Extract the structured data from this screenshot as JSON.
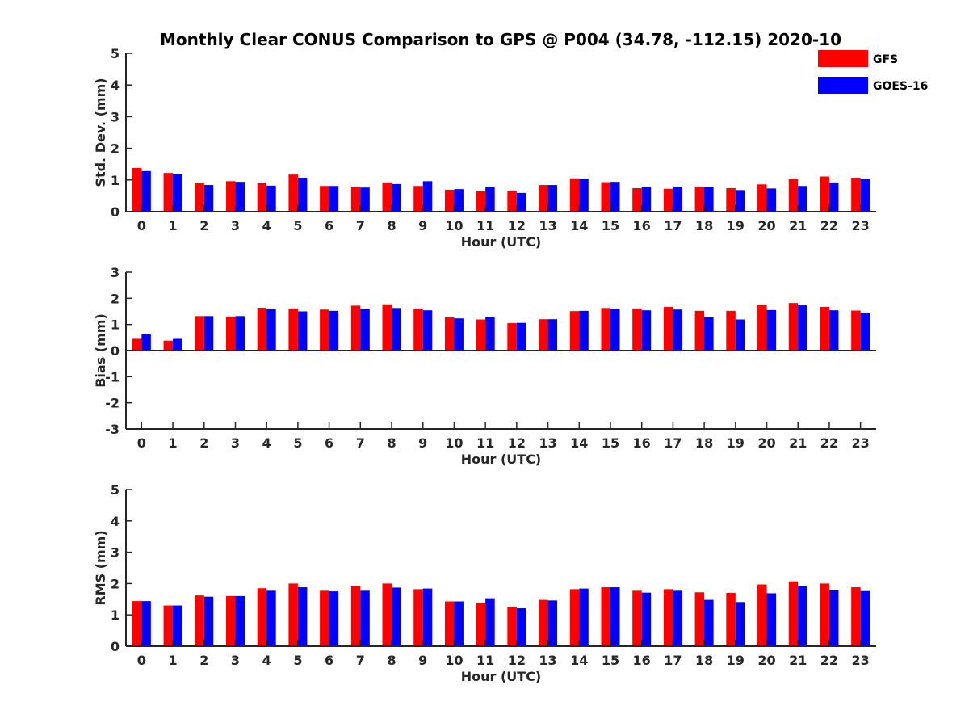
{
  "chart_data": [
    {
      "type": "bar",
      "title": "Monthly Clear CONUS Comparison to GPS @ P004 (34.78, -112.15) 2020-10",
      "xlabel": "Hour (UTC)",
      "ylabel": "Std. Dev. (mm)",
      "ylim": [
        0,
        5
      ],
      "yticks": [
        0,
        1,
        2,
        3,
        4,
        5
      ],
      "categories": [
        "0",
        "1",
        "2",
        "3",
        "4",
        "5",
        "6",
        "7",
        "8",
        "9",
        "10",
        "11",
        "12",
        "13",
        "14",
        "15",
        "16",
        "17",
        "18",
        "19",
        "20",
        "21",
        "22",
        "23"
      ],
      "series": [
        {
          "name": "GFS",
          "color": "#ff0000",
          "values": [
            1.38,
            1.22,
            0.9,
            0.96,
            0.9,
            1.17,
            0.81,
            0.79,
            0.92,
            0.81,
            0.69,
            0.64,
            0.66,
            0.84,
            1.05,
            0.93,
            0.74,
            0.72,
            0.79,
            0.74,
            0.86,
            1.02,
            1.11,
            1.07
          ]
        },
        {
          "name": "GOES-16",
          "color": "#0000ff",
          "values": [
            1.28,
            1.19,
            0.84,
            0.94,
            0.82,
            1.07,
            0.81,
            0.76,
            0.87,
            0.96,
            0.71,
            0.78,
            0.59,
            0.84,
            1.04,
            0.94,
            0.78,
            0.78,
            0.79,
            0.68,
            0.73,
            0.81,
            0.92,
            1.03
          ]
        }
      ],
      "legend": "top-right",
      "grid": false
    },
    {
      "type": "bar",
      "xlabel": "Hour (UTC)",
      "ylabel": "Bias (mm)",
      "ylim": [
        -3,
        3
      ],
      "yticks": [
        -3,
        -2,
        -1,
        0,
        1,
        2,
        3
      ],
      "categories": [
        "0",
        "1",
        "2",
        "3",
        "4",
        "5",
        "6",
        "7",
        "8",
        "9",
        "10",
        "11",
        "12",
        "13",
        "14",
        "15",
        "16",
        "17",
        "18",
        "19",
        "20",
        "21",
        "22",
        "23"
      ],
      "series": [
        {
          "name": "GFS",
          "color": "#ff0000",
          "values": [
            0.45,
            0.38,
            1.32,
            1.3,
            1.64,
            1.61,
            1.57,
            1.72,
            1.77,
            1.6,
            1.27,
            1.19,
            1.05,
            1.2,
            1.51,
            1.63,
            1.61,
            1.67,
            1.52,
            1.52,
            1.76,
            1.82,
            1.67,
            1.53
          ]
        },
        {
          "name": "GOES-16",
          "color": "#0000ff",
          "values": [
            0.62,
            0.45,
            1.32,
            1.32,
            1.58,
            1.5,
            1.52,
            1.6,
            1.63,
            1.54,
            1.23,
            1.29,
            1.06,
            1.2,
            1.52,
            1.6,
            1.54,
            1.57,
            1.27,
            1.19,
            1.55,
            1.73,
            1.54,
            1.45
          ]
        }
      ],
      "grid": false
    },
    {
      "type": "bar",
      "xlabel": "Hour (UTC)",
      "ylabel": "RMS (mm)",
      "ylim": [
        0,
        5
      ],
      "yticks": [
        0,
        1,
        2,
        3,
        4,
        5
      ],
      "categories": [
        "0",
        "1",
        "2",
        "3",
        "4",
        "5",
        "6",
        "7",
        "8",
        "9",
        "10",
        "11",
        "12",
        "13",
        "14",
        "15",
        "16",
        "17",
        "18",
        "19",
        "20",
        "21",
        "22",
        "23"
      ],
      "series": [
        {
          "name": "GFS",
          "color": "#ff0000",
          "values": [
            1.44,
            1.3,
            1.62,
            1.6,
            1.85,
            2.0,
            1.77,
            1.92,
            2.0,
            1.82,
            1.43,
            1.38,
            1.26,
            1.48,
            1.82,
            1.88,
            1.77,
            1.82,
            1.72,
            1.7,
            1.97,
            2.07,
            2.0,
            1.88
          ]
        },
        {
          "name": "GOES-16",
          "color": "#0000ff",
          "values": [
            1.44,
            1.3,
            1.58,
            1.6,
            1.77,
            1.88,
            1.75,
            1.77,
            1.87,
            1.84,
            1.43,
            1.53,
            1.21,
            1.46,
            1.84,
            1.88,
            1.71,
            1.77,
            1.48,
            1.41,
            1.69,
            1.92,
            1.79,
            1.76
          ]
        }
      ],
      "grid": false
    }
  ]
}
